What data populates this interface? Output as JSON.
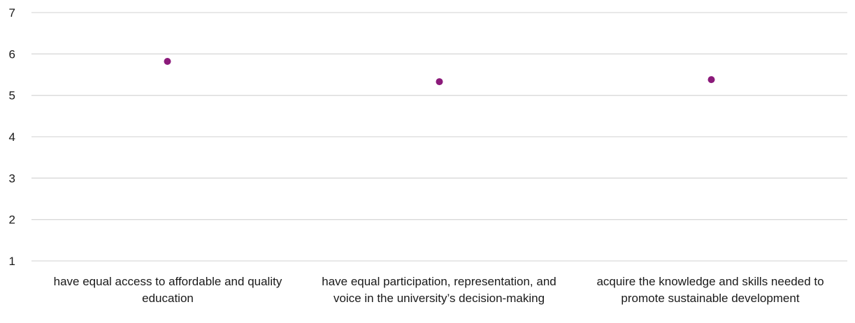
{
  "chart_data": {
    "type": "scatter",
    "categories": [
      "have equal access to affordable and quality education",
      "have equal participation, representation, and voice in the university’s decision-making",
      "acquire the knowledge and skills needed to promote sustainable development"
    ],
    "series": [
      {
        "values": [
          5.82,
          5.33,
          5.38
        ]
      }
    ],
    "y_ticks": [
      "1",
      "2",
      "3",
      "4",
      "5",
      "6",
      "7"
    ],
    "ylim": [
      1,
      7
    ],
    "grid": true,
    "colors": {
      "marker": "#8b1a7a",
      "grid": "#d9d9d9"
    }
  }
}
